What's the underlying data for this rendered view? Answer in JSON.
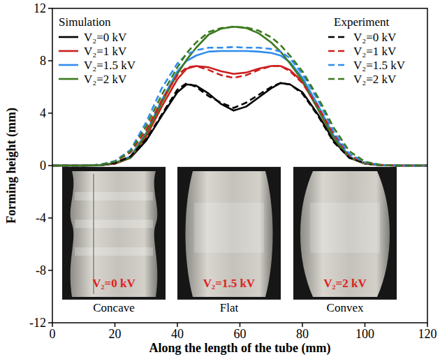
{
  "chart_data": {
    "type": "line",
    "x_label": "Along the length of the tube (mm)",
    "y_label": "Forming height (mm)",
    "legend_titles": [
      "Simulation",
      "Experiment"
    ],
    "legend": "top",
    "xlim": [
      0,
      120
    ],
    "ylim": [
      -12,
      12
    ],
    "xticks": [
      0,
      20,
      40,
      60,
      80,
      100,
      120
    ],
    "yticks": [
      -12,
      -8,
      -4,
      0,
      4,
      8,
      12
    ],
    "x": [
      0,
      10,
      15,
      20,
      25,
      30,
      35,
      40,
      43,
      46,
      50,
      54,
      58,
      62,
      66,
      70,
      73,
      76,
      80,
      85,
      90,
      95,
      100,
      105,
      110,
      120
    ],
    "series": [
      {
        "name": "V₂=0 kV",
        "color": "#000000",
        "line_style": "solid",
        "values": [
          0,
          0,
          0.02,
          0.15,
          0.6,
          1.9,
          3.8,
          5.6,
          6.2,
          6.1,
          5.5,
          4.7,
          4.2,
          4.5,
          5.2,
          5.9,
          6.3,
          6.2,
          5.6,
          3.9,
          1.9,
          0.6,
          0.15,
          0.03,
          0,
          0
        ]
      },
      {
        "name": "V₂=1 kV",
        "color": "#cc1f1f",
        "line_style": "solid",
        "values": [
          0,
          0,
          0.02,
          0.15,
          0.6,
          2.2,
          4.5,
          6.6,
          7.4,
          7.6,
          7.5,
          7.2,
          7.0,
          7.1,
          7.4,
          7.6,
          7.6,
          7.3,
          6.4,
          4.3,
          2.1,
          0.6,
          0.15,
          0.03,
          0,
          0
        ]
      },
      {
        "name": "V₂=1.5 kV",
        "color": "#2f8ded",
        "line_style": "solid",
        "values": [
          0,
          0,
          0.02,
          0.2,
          0.7,
          2.5,
          5.0,
          7.2,
          8.0,
          8.4,
          8.7,
          8.75,
          8.75,
          8.75,
          8.7,
          8.6,
          8.4,
          7.9,
          6.7,
          4.6,
          2.3,
          0.7,
          0.15,
          0.03,
          0,
          0
        ]
      },
      {
        "name": "V₂=2 kV",
        "color": "#3b7a1f",
        "line_style": "solid",
        "values": [
          0,
          0,
          0.02,
          0.2,
          0.6,
          2.4,
          4.8,
          7.0,
          8.1,
          9.0,
          10.0,
          10.45,
          10.6,
          10.5,
          10.1,
          9.4,
          8.7,
          7.8,
          6.5,
          4.3,
          2.1,
          0.6,
          0.15,
          0.03,
          0,
          0
        ]
      },
      {
        "name": "V₂=0 kV",
        "color": "#000000",
        "line_style": "dashed",
        "values": [
          0,
          0,
          0.05,
          0.2,
          0.7,
          2.0,
          3.9,
          5.8,
          6.3,
          6.0,
          5.3,
          4.8,
          4.4,
          4.8,
          5.4,
          6.0,
          6.3,
          6.2,
          5.5,
          3.8,
          1.8,
          0.6,
          0.2,
          0.05,
          0,
          0
        ]
      },
      {
        "name": "V₂=1 kV",
        "color": "#cc1f1f",
        "line_style": "dashed",
        "values": [
          0,
          0,
          0.05,
          0.3,
          1.0,
          2.7,
          5.0,
          6.9,
          7.5,
          7.6,
          7.3,
          6.9,
          6.7,
          6.9,
          7.3,
          7.6,
          7.6,
          7.2,
          6.3,
          4.5,
          2.4,
          0.8,
          0.2,
          0.05,
          0,
          0
        ]
      },
      {
        "name": "V₂=1.5 kV",
        "color": "#2f8ded",
        "line_style": "dashed",
        "values": [
          0,
          0,
          0.05,
          0.35,
          1.2,
          3.3,
          5.9,
          7.8,
          8.5,
          8.8,
          9.0,
          9.0,
          9.05,
          9.0,
          9.0,
          8.9,
          8.7,
          8.2,
          7.0,
          5.0,
          2.6,
          0.9,
          0.25,
          0.05,
          0,
          0
        ]
      },
      {
        "name": "V₂=2 kV",
        "color": "#3b7a1f",
        "line_style": "dashed",
        "values": [
          0,
          0,
          0.05,
          0.3,
          1.1,
          3.0,
          5.4,
          7.5,
          8.6,
          9.4,
          10.2,
          10.5,
          10.6,
          10.55,
          10.3,
          9.8,
          9.2,
          8.4,
          7.2,
          5.2,
          2.9,
          1.1,
          0.3,
          0.05,
          0,
          0
        ]
      }
    ],
    "insets": [
      {
        "label": "V₂=0 kV",
        "caption": "Concave"
      },
      {
        "label": "V₂=1.5 kV",
        "caption": "Flat"
      },
      {
        "label": "V₂=2 kV",
        "caption": "Convex"
      }
    ]
  }
}
